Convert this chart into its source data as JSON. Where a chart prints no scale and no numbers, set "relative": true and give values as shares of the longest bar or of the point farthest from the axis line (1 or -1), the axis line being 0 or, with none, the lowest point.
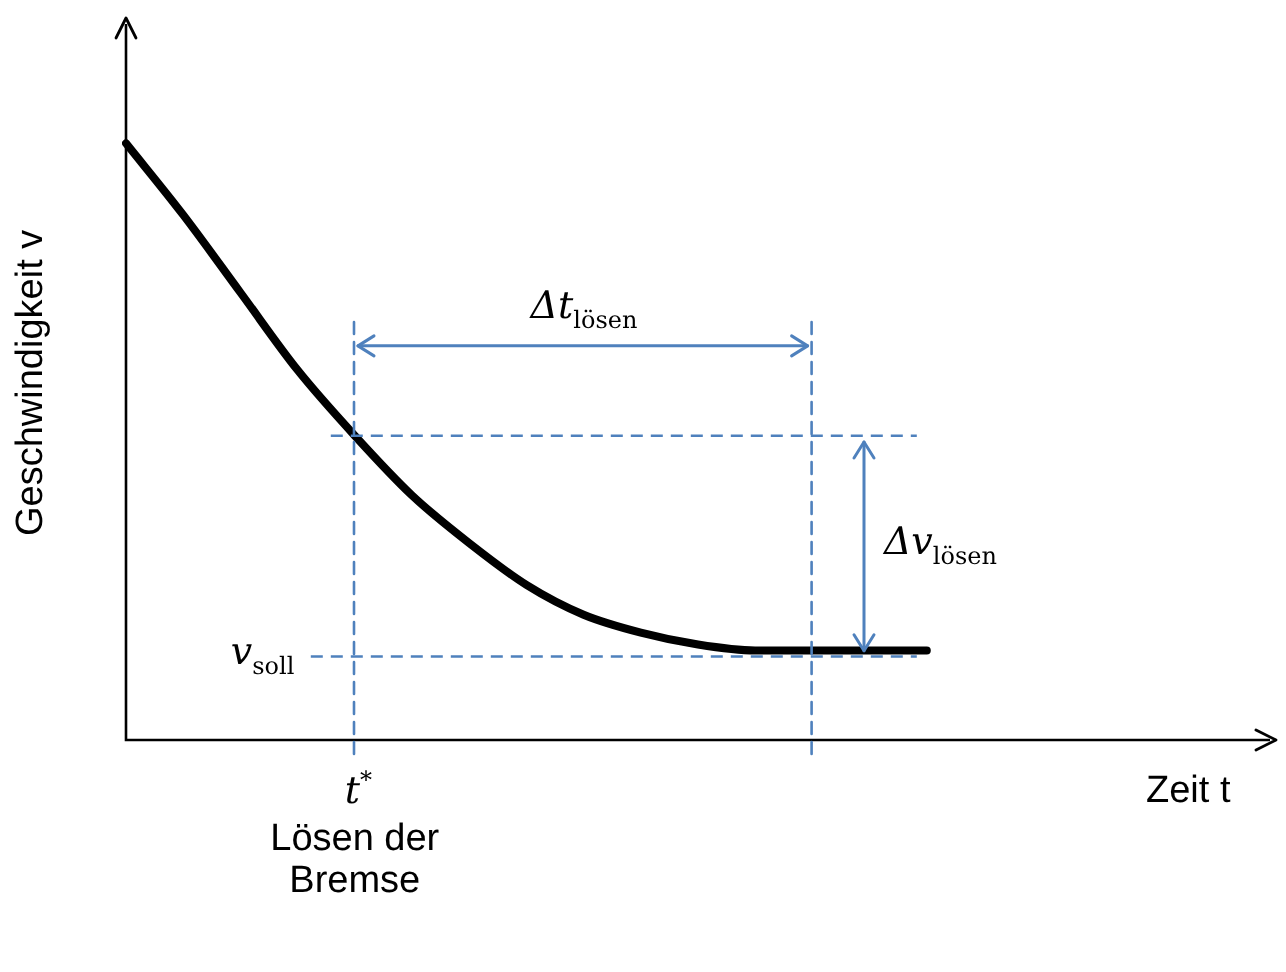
{
  "chart_data": {
    "type": "line",
    "relative": true,
    "xlabel": "Zeit t",
    "ylabel": "Geschwindigkeit v",
    "categories": [
      null,
      null,
      null,
      null,
      null,
      null,
      null,
      null,
      null,
      null,
      null,
      null,
      null,
      null,
      null,
      null,
      null,
      null,
      null,
      null,
      null
    ],
    "series": [
      {
        "color": "#000000",
        "values": [
          1,
          0.88,
          0.75,
          0.62,
          0.51,
          0.41,
          0.33,
          0.26,
          0.21,
          0.18,
          0.16,
          0.15,
          0.15,
          0.15,
          0.15,
          null,
          null,
          null,
          null,
          null,
          null
        ]
      }
    ],
    "ref_lines": [
      {
        "axis": "y",
        "value": 0.14,
        "label": "v$_{soll}$",
        "color": "#4f81bd",
        "line_style": "dashed"
      },
      {
        "axis": "y",
        "value": 0.51,
        "color": "#4f81bd",
        "line_style": "dashed"
      }
    ],
    "annotations": [
      "Δt$_{lösen}$",
      "Δv$_{lösen}$",
      "t$^{*}$",
      "Lösen der Bremse"
    ],
    "legend": false,
    "grid": false,
    "marker": "none",
    "line_style": "solid"
  }
}
